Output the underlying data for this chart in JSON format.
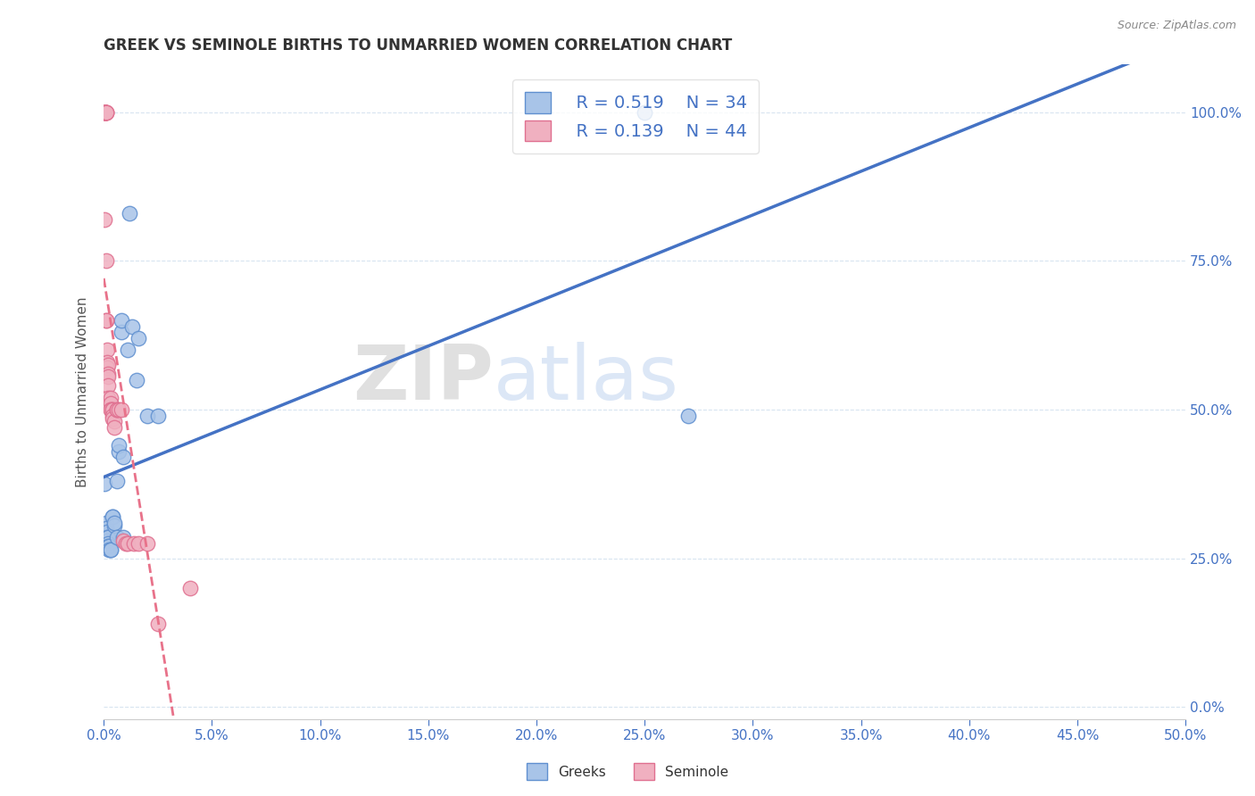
{
  "title": "GREEK VS SEMINOLE BIRTHS TO UNMARRIED WOMEN CORRELATION CHART",
  "source": "Source: ZipAtlas.com",
  "ylabel": "Births to Unmarried Women",
  "xlim": [
    0.0,
    0.5
  ],
  "ylim": [
    -0.02,
    1.08
  ],
  "watermark_zip": "ZIP",
  "watermark_atlas": "atlas",
  "legend": {
    "blue_r": "R = 0.519",
    "blue_n": "N = 34",
    "pink_r": "R = 0.139",
    "pink_n": "N = 44"
  },
  "blue_scatter": [
    [
      0.0005,
      0.375
    ],
    [
      0.001,
      0.31
    ],
    [
      0.001,
      0.3
    ],
    [
      0.0015,
      0.295
    ],
    [
      0.0015,
      0.285
    ],
    [
      0.0015,
      0.28
    ],
    [
      0.002,
      0.285
    ],
    [
      0.002,
      0.275
    ],
    [
      0.002,
      0.27
    ],
    [
      0.0025,
      0.27
    ],
    [
      0.0025,
      0.265
    ],
    [
      0.003,
      0.265
    ],
    [
      0.003,
      0.265
    ],
    [
      0.004,
      0.32
    ],
    [
      0.004,
      0.32
    ],
    [
      0.005,
      0.305
    ],
    [
      0.005,
      0.31
    ],
    [
      0.006,
      0.38
    ],
    [
      0.006,
      0.285
    ],
    [
      0.007,
      0.43
    ],
    [
      0.007,
      0.44
    ],
    [
      0.008,
      0.63
    ],
    [
      0.008,
      0.65
    ],
    [
      0.009,
      0.42
    ],
    [
      0.009,
      0.285
    ],
    [
      0.011,
      0.6
    ],
    [
      0.012,
      0.83
    ],
    [
      0.013,
      0.64
    ],
    [
      0.015,
      0.55
    ],
    [
      0.016,
      0.62
    ],
    [
      0.02,
      0.49
    ],
    [
      0.025,
      0.49
    ],
    [
      0.25,
      1.0
    ],
    [
      0.27,
      0.49
    ]
  ],
  "pink_scatter": [
    [
      0.0003,
      1.0
    ],
    [
      0.0004,
      1.0
    ],
    [
      0.0005,
      1.0
    ],
    [
      0.0006,
      1.0
    ],
    [
      0.0007,
      1.0
    ],
    [
      0.0008,
      1.0
    ],
    [
      0.0009,
      1.0
    ],
    [
      0.001,
      1.0
    ],
    [
      0.001,
      1.0
    ],
    [
      0.001,
      1.0
    ],
    [
      0.0005,
      0.82
    ],
    [
      0.001,
      0.75
    ],
    [
      0.001,
      0.65
    ],
    [
      0.001,
      0.65
    ],
    [
      0.0015,
      0.6
    ],
    [
      0.0015,
      0.58
    ],
    [
      0.0015,
      0.57
    ],
    [
      0.002,
      0.575
    ],
    [
      0.002,
      0.56
    ],
    [
      0.002,
      0.555
    ],
    [
      0.002,
      0.54
    ],
    [
      0.002,
      0.52
    ],
    [
      0.003,
      0.52
    ],
    [
      0.003,
      0.51
    ],
    [
      0.003,
      0.5
    ],
    [
      0.003,
      0.5
    ],
    [
      0.004,
      0.5
    ],
    [
      0.004,
      0.5
    ],
    [
      0.004,
      0.49
    ],
    [
      0.004,
      0.485
    ],
    [
      0.005,
      0.48
    ],
    [
      0.005,
      0.47
    ],
    [
      0.006,
      0.5
    ],
    [
      0.006,
      0.5
    ],
    [
      0.007,
      0.5
    ],
    [
      0.008,
      0.5
    ],
    [
      0.009,
      0.28
    ],
    [
      0.01,
      0.275
    ],
    [
      0.011,
      0.275
    ],
    [
      0.014,
      0.275
    ],
    [
      0.016,
      0.275
    ],
    [
      0.02,
      0.275
    ],
    [
      0.025,
      0.14
    ],
    [
      0.04,
      0.2
    ]
  ],
  "blue_line_color": "#4472C4",
  "pink_line_color": "#E8728A",
  "blue_marker_facecolor": "#A8C4E8",
  "pink_marker_facecolor": "#F0B0C0",
  "blue_marker_edgecolor": "#6090D0",
  "pink_marker_edgecolor": "#E07090",
  "grid_color": "#D8E4F0",
  "tick_label_color": "#4472C4",
  "ylabel_color": "#555555",
  "title_color": "#333333",
  "source_color": "#888888",
  "background_color": "#FFFFFF",
  "x_ticks": [
    0.0,
    0.05,
    0.1,
    0.15,
    0.2,
    0.25,
    0.3,
    0.35,
    0.4,
    0.45,
    0.5
  ],
  "y_ticks": [
    0.0,
    0.25,
    0.5,
    0.75,
    1.0
  ]
}
